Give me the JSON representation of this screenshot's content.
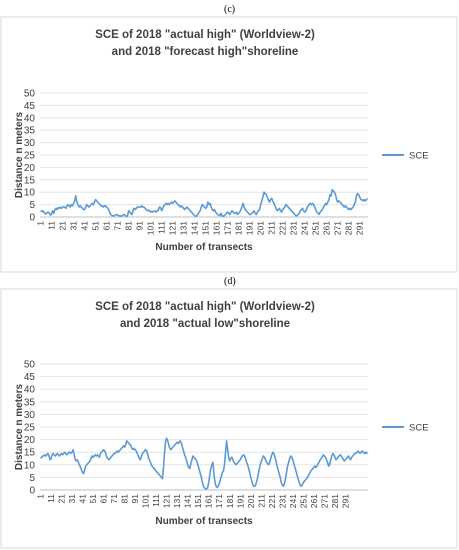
{
  "panels": [
    {
      "label": "(c)"
    },
    {
      "label": "(d)"
    }
  ],
  "chart_data": [
    {
      "type": "line",
      "title_lines": [
        "SCE of 2018 \"actual high\" (Worldview-2)",
        "and 2018 \"forecast high\"shoreline"
      ],
      "xlabel": "Number of transects",
      "ylabel": "Distance n meters",
      "ylim": [
        0,
        50
      ],
      "yticks": [
        0,
        5,
        10,
        15,
        20,
        25,
        30,
        35,
        40,
        45,
        50
      ],
      "xtick_labels": [
        "1",
        "11",
        "21",
        "31",
        "41",
        "51",
        "61",
        "71",
        "81",
        "91",
        "101",
        "111",
        "121",
        "131",
        "141",
        "151",
        "161",
        "171",
        "181",
        "191",
        "201",
        "211",
        "221",
        "231",
        "241",
        "251",
        "261",
        "271",
        "281",
        "291"
      ],
      "grid": true,
      "legend": "right",
      "series_color": "#5b9bd5",
      "series": [
        {
          "name": "SCE",
          "values": [
            2.5,
            2.2,
            2.6,
            1.8,
            1.5,
            1.2,
            1.8,
            2.0,
            1.5,
            0.8,
            1.2,
            2.5,
            1.5,
            3.0,
            3.5,
            3.0,
            3.8,
            3.5,
            4.0,
            3.5,
            3.8,
            4.2,
            4.0,
            3.5,
            4.5,
            5.0,
            4.5,
            4.0,
            5.0,
            4.5,
            5.5,
            6.5,
            8.5,
            6.0,
            5.0,
            4.0,
            4.5,
            4.0,
            3.5,
            3.0,
            3.0,
            4.0,
            5.0,
            4.5,
            4.0,
            4.5,
            5.0,
            5.5,
            5.0,
            6.0,
            7.0,
            6.5,
            6.0,
            5.5,
            5.0,
            4.5,
            4.5,
            4.0,
            4.5,
            4.5,
            4.0,
            3.5,
            3.0,
            1.5,
            1.0,
            0.5,
            0.5,
            0.5,
            0.8,
            1.0,
            0.8,
            0.5,
            0.5,
            0.3,
            0.5,
            0.8,
            1.0,
            0.5,
            0.3,
            0.5,
            2.5,
            2.0,
            1.5,
            1.0,
            2.5,
            3.5,
            3.0,
            3.5,
            4.0,
            4.0,
            4.0,
            4.0,
            4.5,
            4.0,
            4.0,
            3.5,
            3.0,
            2.5,
            2.8,
            2.5,
            2.0,
            2.3,
            2.0,
            2.3,
            2.5,
            2.0,
            2.5,
            2.8,
            4.0,
            3.8,
            2.5,
            3.5,
            4.5,
            5.0,
            5.5,
            5.0,
            5.5,
            5.0,
            5.5,
            6.0,
            5.5,
            6.0,
            6.5,
            6.0,
            5.5,
            5.0,
            4.5,
            4.0,
            4.5,
            4.0,
            3.5,
            3.0,
            3.5,
            4.0,
            3.5,
            3.0,
            2.5,
            2.0,
            1.5,
            1.0,
            0.5,
            0.3,
            0.5,
            1.0,
            2.0,
            2.5,
            4.0,
            5.0,
            4.5,
            4.0,
            3.5,
            4.0,
            6.0,
            5.0,
            5.5,
            4.0,
            3.0,
            2.5,
            3.0,
            2.0,
            1.5,
            1.0,
            0.8,
            0.5,
            1.5,
            0.5,
            0.3,
            0.5,
            1.0,
            1.5,
            2.0,
            1.5,
            1.0,
            2.0,
            2.5,
            2.0,
            1.5,
            1.5,
            2.0,
            1.0,
            1.5,
            2.0,
            3.0,
            4.0,
            5.5,
            4.0,
            3.0,
            2.5,
            2.0,
            1.5,
            1.0,
            1.0,
            1.5,
            2.0,
            2.5,
            1.5,
            1.0,
            2.0,
            2.5,
            3.0,
            5.0,
            6.5,
            8.0,
            10.0,
            9.5,
            9.0,
            8.0,
            7.0,
            6.0,
            7.0,
            7.5,
            6.5,
            5.5,
            4.5,
            3.5,
            2.5,
            3.0,
            3.5,
            2.5,
            2.0,
            3.0,
            3.5,
            4.0,
            5.0,
            4.5,
            4.0,
            3.5,
            3.0,
            2.5,
            2.0,
            1.5,
            1.0,
            0.5,
            0.5,
            1.0,
            1.5,
            2.5,
            3.0,
            3.5,
            2.5,
            2.0,
            2.5,
            3.5,
            4.5,
            5.0,
            5.5,
            5.0,
            5.5,
            5.0,
            4.0,
            3.0,
            2.0,
            1.5,
            1.0,
            2.0,
            2.5,
            3.0,
            4.0,
            4.5,
            5.5,
            5.0,
            6.0,
            7.0,
            9.0,
            8.5,
            11.0,
            10.5,
            10.0,
            9.0,
            7.0,
            6.0,
            6.5,
            6.0,
            5.5,
            5.0,
            4.5,
            4.0,
            4.5,
            4.0,
            3.5,
            3.0,
            3.5,
            3.0,
            3.5,
            4.0,
            5.0,
            6.0,
            8.5,
            9.5,
            9.0,
            8.0,
            7.0,
            7.0,
            6.5,
            7.0,
            6.5,
            7.0,
            7.5
          ]
        }
      ]
    },
    {
      "type": "line",
      "title_lines": [
        "SCE of 2018 \"actual high\" (Worldview-2)",
        "and 2018 \"actual low\"shoreline"
      ],
      "xlabel": "Number of transects",
      "ylabel": "Distance n meters",
      "ylim": [
        0,
        50
      ],
      "yticks": [
        0,
        5,
        10,
        15,
        20,
        25,
        30,
        35,
        40,
        45,
        50
      ],
      "xtick_labels": [
        "1",
        "11",
        "21",
        "31",
        "41",
        "51",
        "61",
        "71",
        "81",
        "91",
        "101",
        "111",
        "121",
        "131",
        "141",
        "151",
        "161",
        "171",
        "181",
        "191",
        "201",
        "211",
        "221",
        "231",
        "241",
        "251",
        "261",
        "271",
        "281",
        "291"
      ],
      "grid": true,
      "legend": "right",
      "series_color": "#5b9bd5",
      "series": [
        {
          "name": "SCE",
          "values": [
            12.5,
            13.0,
            13.5,
            13.5,
            14.0,
            13.5,
            14.0,
            14.5,
            13.5,
            12.0,
            12.5,
            14.0,
            14.5,
            14.0,
            13.5,
            14.0,
            14.5,
            14.0,
            13.5,
            14.0,
            14.5,
            14.0,
            14.5,
            15.0,
            14.5,
            14.0,
            14.5,
            15.0,
            15.0,
            14.5,
            15.0,
            16.0,
            14.0,
            12.0,
            11.5,
            12.0,
            11.0,
            10.0,
            9.0,
            8.0,
            7.0,
            6.5,
            8.0,
            9.5,
            10.0,
            10.5,
            11.0,
            11.5,
            12.5,
            13.5,
            13.0,
            13.5,
            14.0,
            13.5,
            14.0,
            13.5,
            13.0,
            14.5,
            15.0,
            15.5,
            16.0,
            15.5,
            14.5,
            13.0,
            12.5,
            12.0,
            12.5,
            13.0,
            13.5,
            14.0,
            14.5,
            14.5,
            15.0,
            15.5,
            15.0,
            15.5,
            16.0,
            16.5,
            17.0,
            17.5,
            17.0,
            18.0,
            19.5,
            19.0,
            18.5,
            18.0,
            17.5,
            16.5,
            16.0,
            16.5,
            16.0,
            15.5,
            14.5,
            13.5,
            12.5,
            12.0,
            13.5,
            14.5,
            15.0,
            15.5,
            16.0,
            15.5,
            14.0,
            12.5,
            11.5,
            10.5,
            9.5,
            9.0,
            8.5,
            8.0,
            7.5,
            7.0,
            6.5,
            6.0,
            5.5,
            5.0,
            4.5,
            9.0,
            15.0,
            19.5,
            20.5,
            19.5,
            18.0,
            16.5,
            16.0,
            16.5,
            17.0,
            17.5,
            18.0,
            18.5,
            19.0,
            18.5,
            19.0,
            19.5,
            18.5,
            17.0,
            15.5,
            14.0,
            13.0,
            11.5,
            10.0,
            9.0,
            8.5,
            10.5,
            12.0,
            13.5,
            13.0,
            12.5,
            12.0,
            11.0,
            9.5,
            8.0,
            6.5,
            5.0,
            3.0,
            1.5,
            0.8,
            0.5,
            0.5,
            1.0,
            3.0,
            6.0,
            8.5,
            10.0,
            11.0,
            6.0,
            3.0,
            1.5,
            1.0,
            1.5,
            2.5,
            4.0,
            5.5,
            7.0,
            7.5,
            10.0,
            15.0,
            19.5,
            16.0,
            13.0,
            11.5,
            12.5,
            13.0,
            12.0,
            11.0,
            10.5,
            10.0,
            10.5,
            11.0,
            11.5,
            12.0,
            13.0,
            13.5,
            14.0,
            13.5,
            12.5,
            11.0,
            10.0,
            8.5,
            7.0,
            5.0,
            3.5,
            2.0,
            1.5,
            1.5,
            2.5,
            4.0,
            6.0,
            8.0,
            10.0,
            11.5,
            12.5,
            13.5,
            13.0,
            12.0,
            11.0,
            10.5,
            10.0,
            11.0,
            12.5,
            14.0,
            15.0,
            14.5,
            13.0,
            11.5,
            9.5,
            8.0,
            6.5,
            5.0,
            3.0,
            2.0,
            1.5,
            2.5,
            4.5,
            7.0,
            9.5,
            11.0,
            12.5,
            13.5,
            13.0,
            12.0,
            10.5,
            9.0,
            7.5,
            6.0,
            4.5,
            3.0,
            2.0,
            1.5,
            2.0,
            3.0,
            3.5,
            4.0,
            4.5,
            5.0,
            6.0,
            6.5,
            7.5,
            8.0,
            8.5,
            9.0,
            9.5,
            9.0,
            9.5,
            10.5,
            11.0,
            12.0,
            12.5,
            13.0,
            14.0,
            13.5,
            13.0,
            12.0,
            11.0,
            9.5,
            10.0,
            12.0,
            13.5,
            14.5,
            14.0,
            13.0,
            12.0,
            12.5,
            13.0,
            13.5,
            14.0,
            13.5,
            13.0,
            12.0,
            11.5,
            12.0,
            12.5,
            13.0,
            13.5,
            12.5,
            12.0,
            13.0,
            13.5,
            14.0,
            14.5,
            14.5,
            15.0,
            15.5,
            15.0,
            14.5,
            15.0,
            15.5,
            15.0,
            14.5,
            15.0,
            14.5,
            15.0
          ]
        }
      ]
    }
  ]
}
